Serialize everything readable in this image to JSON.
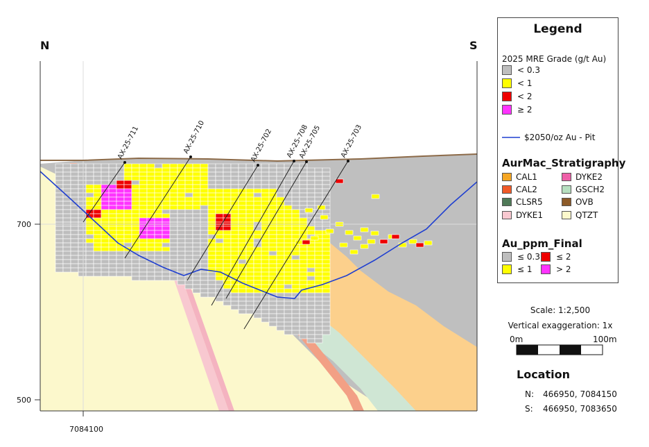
{
  "compass": {
    "north": "N",
    "south": "S"
  },
  "axis": {
    "elev_700": "700",
    "elev_500": "500",
    "northing": "7084100"
  },
  "drillholes": [
    "AX-25-711",
    "AX-25-710",
    "AX-25-702",
    "AX-25-708",
    "AX-25-705",
    "AX-25-703"
  ],
  "legend": {
    "title": "Legend",
    "mre_title": "2025 MRE Grade (g/t Au)",
    "mre_items": [
      {
        "label": "< 0.3",
        "color": "#bebebe"
      },
      {
        "label": "< 1",
        "color": "#ffff00"
      },
      {
        "label": "< 2",
        "color": "#ee0000"
      },
      {
        "label": "≥ 2",
        "color": "#ff33ff"
      }
    ],
    "pit_label": "$2050/oz Au - Pit",
    "pit_color": "#1f3fd0",
    "strat_title": "AurMac_Stratigraphy",
    "strat_items": [
      {
        "label": "CAL1",
        "color": "#f5a623"
      },
      {
        "label": "DYKE2",
        "color": "#ee5fa8"
      },
      {
        "label": "CAL2",
        "color": "#f05a28"
      },
      {
        "label": "GSCH2",
        "color": "#b6dfc0"
      },
      {
        "label": "CLSR5",
        "color": "#4f7a58"
      },
      {
        "label": "OVB",
        "color": "#8c5a28"
      },
      {
        "label": "DYKE1",
        "color": "#f8c8d0"
      },
      {
        "label": "QTZT",
        "color": "#fcf8cc"
      }
    ],
    "au_title": "Au_ppm_Final",
    "au_items": [
      {
        "label": "≤ 0.3",
        "color": "#bebebe"
      },
      {
        "label": "≤ 2",
        "color": "#ee0000"
      },
      {
        "label": "≤ 1",
        "color": "#ffff00"
      },
      {
        "label": "> 2",
        "color": "#ff33ff"
      }
    ]
  },
  "scale": {
    "scale_text": "Scale: 1:2,500",
    "vert_text": "Vertical exaggeration: 1x",
    "bar_start": "0m",
    "bar_end": "100m"
  },
  "location": {
    "title": "Location",
    "north_label": "N:",
    "north_value": "466950, 7084150",
    "south_label": "S:",
    "south_value": "466950, 7083650"
  }
}
